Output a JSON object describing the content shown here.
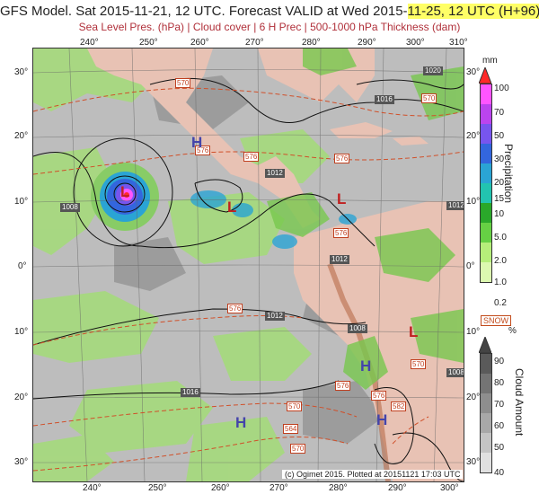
{
  "title": {
    "prefix": "GFS Model. Sat 2015-11-21, 12 UTC. Forecast VALID at Wed 2015-",
    "highlight": "11-25, 12 UTC (H+96)"
  },
  "subtitle": "Sea Level Pres. (hPa) | Cloud cover | 6 H Prec | 500-1000 hPa Thickness (dam)",
  "lon_labels": [
    "240°",
    "250°",
    "260°",
    "270°",
    "280°",
    "290°",
    "300°",
    "310°"
  ],
  "lat_labels_left": [
    "30°",
    "20°",
    "10°",
    "0°",
    "10°",
    "20°",
    "30°"
  ],
  "lat_labels_right": [
    "30°",
    "20°",
    "10°",
    "0°",
    "10°",
    "20°",
    "30°"
  ],
  "pressure_labels": [
    "1008",
    "1012",
    "1012",
    "1012",
    "1008",
    "1016",
    "1016",
    "1020",
    "1012",
    "1008"
  ],
  "thickness_labels": [
    "570",
    "576",
    "576",
    "576",
    "576",
    "576",
    "570",
    "576",
    "570",
    "564",
    "570",
    "576",
    "582",
    "570"
  ],
  "systems": [
    {
      "name": "high-pressure-center",
      "text": "H"
    },
    {
      "name": "low-pressure-center",
      "text": "L"
    },
    {
      "name": "low-pressure-center",
      "text": "L"
    },
    {
      "name": "low-pressure-center",
      "text": "L"
    },
    {
      "name": "high-pressure-center",
      "text": "H"
    },
    {
      "name": "high-pressure-center",
      "text": "H"
    },
    {
      "name": "high-pressure-center",
      "text": "H"
    },
    {
      "name": "low-pressure-center",
      "text": "L"
    }
  ],
  "precip_colorbar": {
    "unit": "mm",
    "title": "Precipitation",
    "labels": [
      "100",
      "70",
      "50",
      "30",
      "20",
      "15",
      "10",
      "5.0",
      "2.0",
      "1.0",
      "0.2"
    ],
    "colors": [
      "#ff2a2a",
      "#ff55ff",
      "#bb44ee",
      "#7755ee",
      "#3366dd",
      "#2aa4d4",
      "#22c4b0",
      "#2aa82a",
      "#66d044",
      "#b6ee7a",
      "#dcf8b0"
    ]
  },
  "snow_label": "SNOW",
  "cloud_colorbar": {
    "unit": "%",
    "title": "Cloud Amount",
    "labels": [
      "90",
      "80",
      "70",
      "60",
      "50",
      "40"
    ],
    "colors": [
      "#555555",
      "#707070",
      "#8a8a8a",
      "#a4a4a4",
      "#bebebe",
      "#d8d8d8"
    ]
  },
  "copyright": "(c) Ogimet 2015. Plotted at 20151121 17:03 UTC"
}
